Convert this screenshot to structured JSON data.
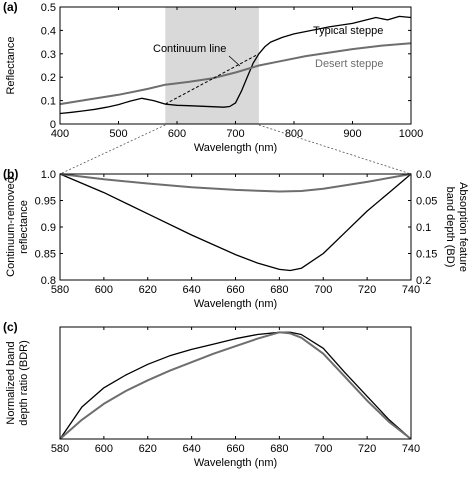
{
  "chart_data": [
    {
      "panel_label": "(a)",
      "type": "line",
      "xlabel": "Wavelength (nm)",
      "ylabel": "Reflectance",
      "xlim": [
        400,
        1000
      ],
      "ylim": [
        0,
        0.5
      ],
      "xticks": [
        400,
        500,
        600,
        700,
        800,
        900,
        1000
      ],
      "yticks": [
        0,
        0.1,
        0.2,
        0.3,
        0.4,
        0.5
      ],
      "grid": false,
      "shaded_band": [
        580,
        740
      ],
      "shaded_color": "#d9d9d9",
      "annotations": [
        {
          "text": "Continuum line"
        }
      ],
      "series": [
        {
          "name": "Typical steppe",
          "color": "#000000",
          "x": [
            400,
            420,
            440,
            460,
            480,
            500,
            520,
            540,
            560,
            580,
            600,
            620,
            640,
            660,
            680,
            690,
            700,
            710,
            720,
            730,
            740,
            750,
            760,
            780,
            800,
            830,
            860,
            900,
            940,
            960,
            980,
            1000
          ],
          "y": [
            0.045,
            0.05,
            0.056,
            0.063,
            0.072,
            0.083,
            0.098,
            0.11,
            0.1,
            0.085,
            0.08,
            0.078,
            0.076,
            0.074,
            0.072,
            0.075,
            0.09,
            0.14,
            0.2,
            0.26,
            0.3,
            0.33,
            0.35,
            0.37,
            0.385,
            0.4,
            0.415,
            0.43,
            0.455,
            0.445,
            0.46,
            0.455
          ]
        },
        {
          "name": "Desert steppe",
          "color": "#6e6e6e",
          "x": [
            400,
            450,
            500,
            550,
            580,
            620,
            660,
            700,
            740,
            780,
            820,
            860,
            900,
            950,
            1000
          ],
          "y": [
            0.085,
            0.105,
            0.125,
            0.15,
            0.168,
            0.18,
            0.195,
            0.22,
            0.25,
            0.27,
            0.29,
            0.305,
            0.32,
            0.335,
            0.345
          ]
        },
        {
          "name": "Continuum line",
          "color": "#000000",
          "dashed": true,
          "x": [
            580,
            740
          ],
          "y": [
            0.085,
            0.3
          ]
        }
      ]
    },
    {
      "panel_label": "(b)",
      "type": "line",
      "xlabel": "Wavelength (nm)",
      "ylabel": "Continuum-removed reflectance",
      "y2label": "Absorption feature band depth (BD)",
      "xlim": [
        580,
        740
      ],
      "ylim": [
        0.8,
        1.0
      ],
      "y2lim": [
        0.2,
        0.0
      ],
      "xticks": [
        580,
        600,
        620,
        640,
        660,
        680,
        700,
        720,
        740
      ],
      "yticks": [
        0.8,
        0.85,
        0.9,
        0.95,
        1.0
      ],
      "ytick_labels": [
        "0.8",
        "0.85",
        "0.9",
        "0.95",
        "1.0"
      ],
      "y2ticks": [
        0.0,
        0.05,
        0.1,
        0.15,
        0.2
      ],
      "y2tick_labels": [
        "0.0",
        "0.05",
        "0.1",
        "0.15",
        "0.2"
      ],
      "grid": false,
      "series": [
        {
          "name": "Typical steppe",
          "color": "#000000",
          "x": [
            580,
            600,
            620,
            640,
            660,
            670,
            680,
            685,
            690,
            700,
            710,
            720,
            730,
            740
          ],
          "y": [
            1.0,
            0.965,
            0.925,
            0.885,
            0.848,
            0.832,
            0.82,
            0.818,
            0.822,
            0.85,
            0.89,
            0.93,
            0.965,
            1.0
          ]
        },
        {
          "name": "Desert steppe",
          "color": "#6e6e6e",
          "x": [
            580,
            600,
            620,
            640,
            660,
            680,
            690,
            700,
            720,
            740
          ],
          "y": [
            1.0,
            0.99,
            0.982,
            0.975,
            0.97,
            0.967,
            0.968,
            0.972,
            0.985,
            1.0
          ]
        }
      ]
    },
    {
      "panel_label": "(c)",
      "type": "line",
      "xlabel": "Wavelength (nm)",
      "ylabel": "Normalized band depth ratio (BDR)",
      "xlim": [
        580,
        740
      ],
      "ylim": [
        0,
        1.05
      ],
      "xticks": [
        580,
        600,
        620,
        640,
        660,
        680,
        700,
        720,
        740
      ],
      "yticks": [],
      "grid": false,
      "series": [
        {
          "name": "Typical steppe",
          "color": "#000000",
          "x": [
            580,
            590,
            600,
            610,
            620,
            630,
            640,
            650,
            660,
            670,
            680,
            685,
            690,
            700,
            710,
            720,
            730,
            740
          ],
          "y": [
            0.0,
            0.3,
            0.48,
            0.6,
            0.7,
            0.78,
            0.84,
            0.89,
            0.94,
            0.98,
            1.0,
            1.0,
            0.98,
            0.85,
            0.62,
            0.4,
            0.18,
            0.0
          ]
        },
        {
          "name": "Desert steppe",
          "color": "#6e6e6e",
          "x": [
            580,
            590,
            600,
            610,
            620,
            630,
            640,
            650,
            660,
            670,
            680,
            685,
            690,
            700,
            710,
            720,
            730,
            740
          ],
          "y": [
            0.0,
            0.18,
            0.33,
            0.45,
            0.55,
            0.64,
            0.72,
            0.8,
            0.87,
            0.94,
            1.0,
            0.99,
            0.95,
            0.8,
            0.58,
            0.36,
            0.16,
            0.0
          ]
        }
      ]
    }
  ]
}
